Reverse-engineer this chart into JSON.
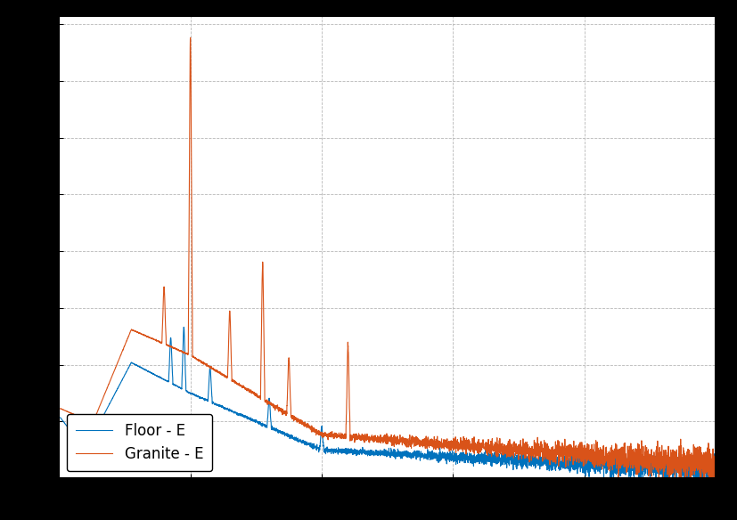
{
  "title": "",
  "xlabel": "",
  "ylabel": "",
  "floor_color": "#0072BD",
  "granite_color": "#D95319",
  "legend_labels": [
    "Floor - E",
    "Granite - E"
  ],
  "background_color": "#ffffff",
  "figure_background": "#000000",
  "xlim": [
    0,
    500
  ],
  "grid_color": "#b0b0b0",
  "linewidth": 0.8,
  "figsize": [
    8.28,
    5.84
  ],
  "dpi": 100,
  "legend_fontsize": 12,
  "tick_labelsize": 10
}
